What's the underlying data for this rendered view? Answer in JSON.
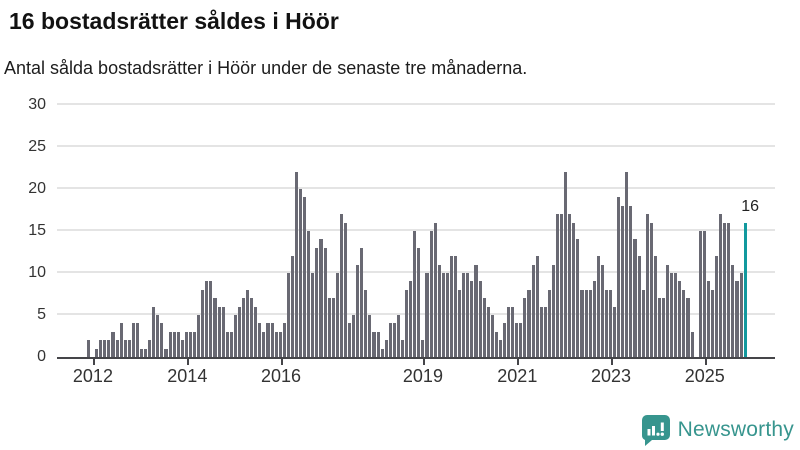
{
  "header": {
    "title": "16 bostadsrätter såldes i Höör",
    "subtitle": "Antal sålda bostadsrätter i Höör under de senaste tre månaderna."
  },
  "chart_data": {
    "type": "bar",
    "title": "16 bostadsrätter såldes i Höör",
    "subtitle": "Antal sålda bostadsrätter i Höör under de senaste tre månaderna.",
    "xlabel": "",
    "ylabel": "",
    "ylim": [
      0,
      30
    ],
    "yticks": [
      0,
      5,
      10,
      15,
      20,
      25,
      30
    ],
    "grid": true,
    "x_period": "monthly",
    "xticks": [
      {
        "label": "2012",
        "pos": 0.009
      },
      {
        "label": "2014",
        "pos": 0.152
      },
      {
        "label": "2016",
        "pos": 0.294
      },
      {
        "label": "2019",
        "pos": 0.509
      },
      {
        "label": "2021",
        "pos": 0.652
      },
      {
        "label": "2023",
        "pos": 0.794
      },
      {
        "label": "2025",
        "pos": 0.936
      }
    ],
    "values": [
      2,
      0,
      1,
      2,
      2,
      2,
      3,
      2,
      4,
      2,
      2,
      4,
      4,
      1,
      1,
      2,
      6,
      5,
      4,
      1,
      3,
      3,
      3,
      2,
      3,
      3,
      3,
      5,
      8,
      9,
      9,
      7,
      6,
      6,
      3,
      3,
      5,
      6,
      7,
      8,
      7,
      6,
      4,
      3,
      4,
      4,
      3,
      3,
      4,
      10,
      12,
      22,
      20,
      19,
      15,
      10,
      13,
      14,
      13,
      7,
      7,
      10,
      17,
      16,
      4,
      5,
      11,
      13,
      8,
      5,
      3,
      3,
      1,
      2,
      4,
      4,
      5,
      2,
      8,
      9,
      15,
      13,
      2,
      10,
      15,
      16,
      11,
      10,
      10,
      12,
      12,
      8,
      10,
      10,
      9,
      11,
      9,
      7,
      6,
      5,
      3,
      2,
      4,
      6,
      6,
      4,
      4,
      7,
      8,
      11,
      12,
      6,
      6,
      8,
      11,
      17,
      17,
      22,
      17,
      16,
      14,
      8,
      8,
      8,
      9,
      12,
      11,
      8,
      8,
      6,
      19,
      18,
      22,
      18,
      14,
      12,
      8,
      17,
      16,
      12,
      7,
      7,
      11,
      10,
      10,
      9,
      8,
      7,
      3,
      0,
      15,
      15,
      9,
      8,
      12,
      17,
      16,
      16,
      11,
      9,
      10,
      16
    ],
    "highlight": {
      "index": 161,
      "value": 16,
      "label": "16"
    }
  },
  "colors": {
    "bar": "#696973",
    "highlight": "#12999e",
    "axis": "#454549",
    "grid": "#e4e4e4",
    "tick_text": "#333333",
    "brand": "#37958e"
  },
  "branding": {
    "logo_text": "Newsworthy",
    "logo_icon": "bar-chart-speech-bubble-icon"
  }
}
